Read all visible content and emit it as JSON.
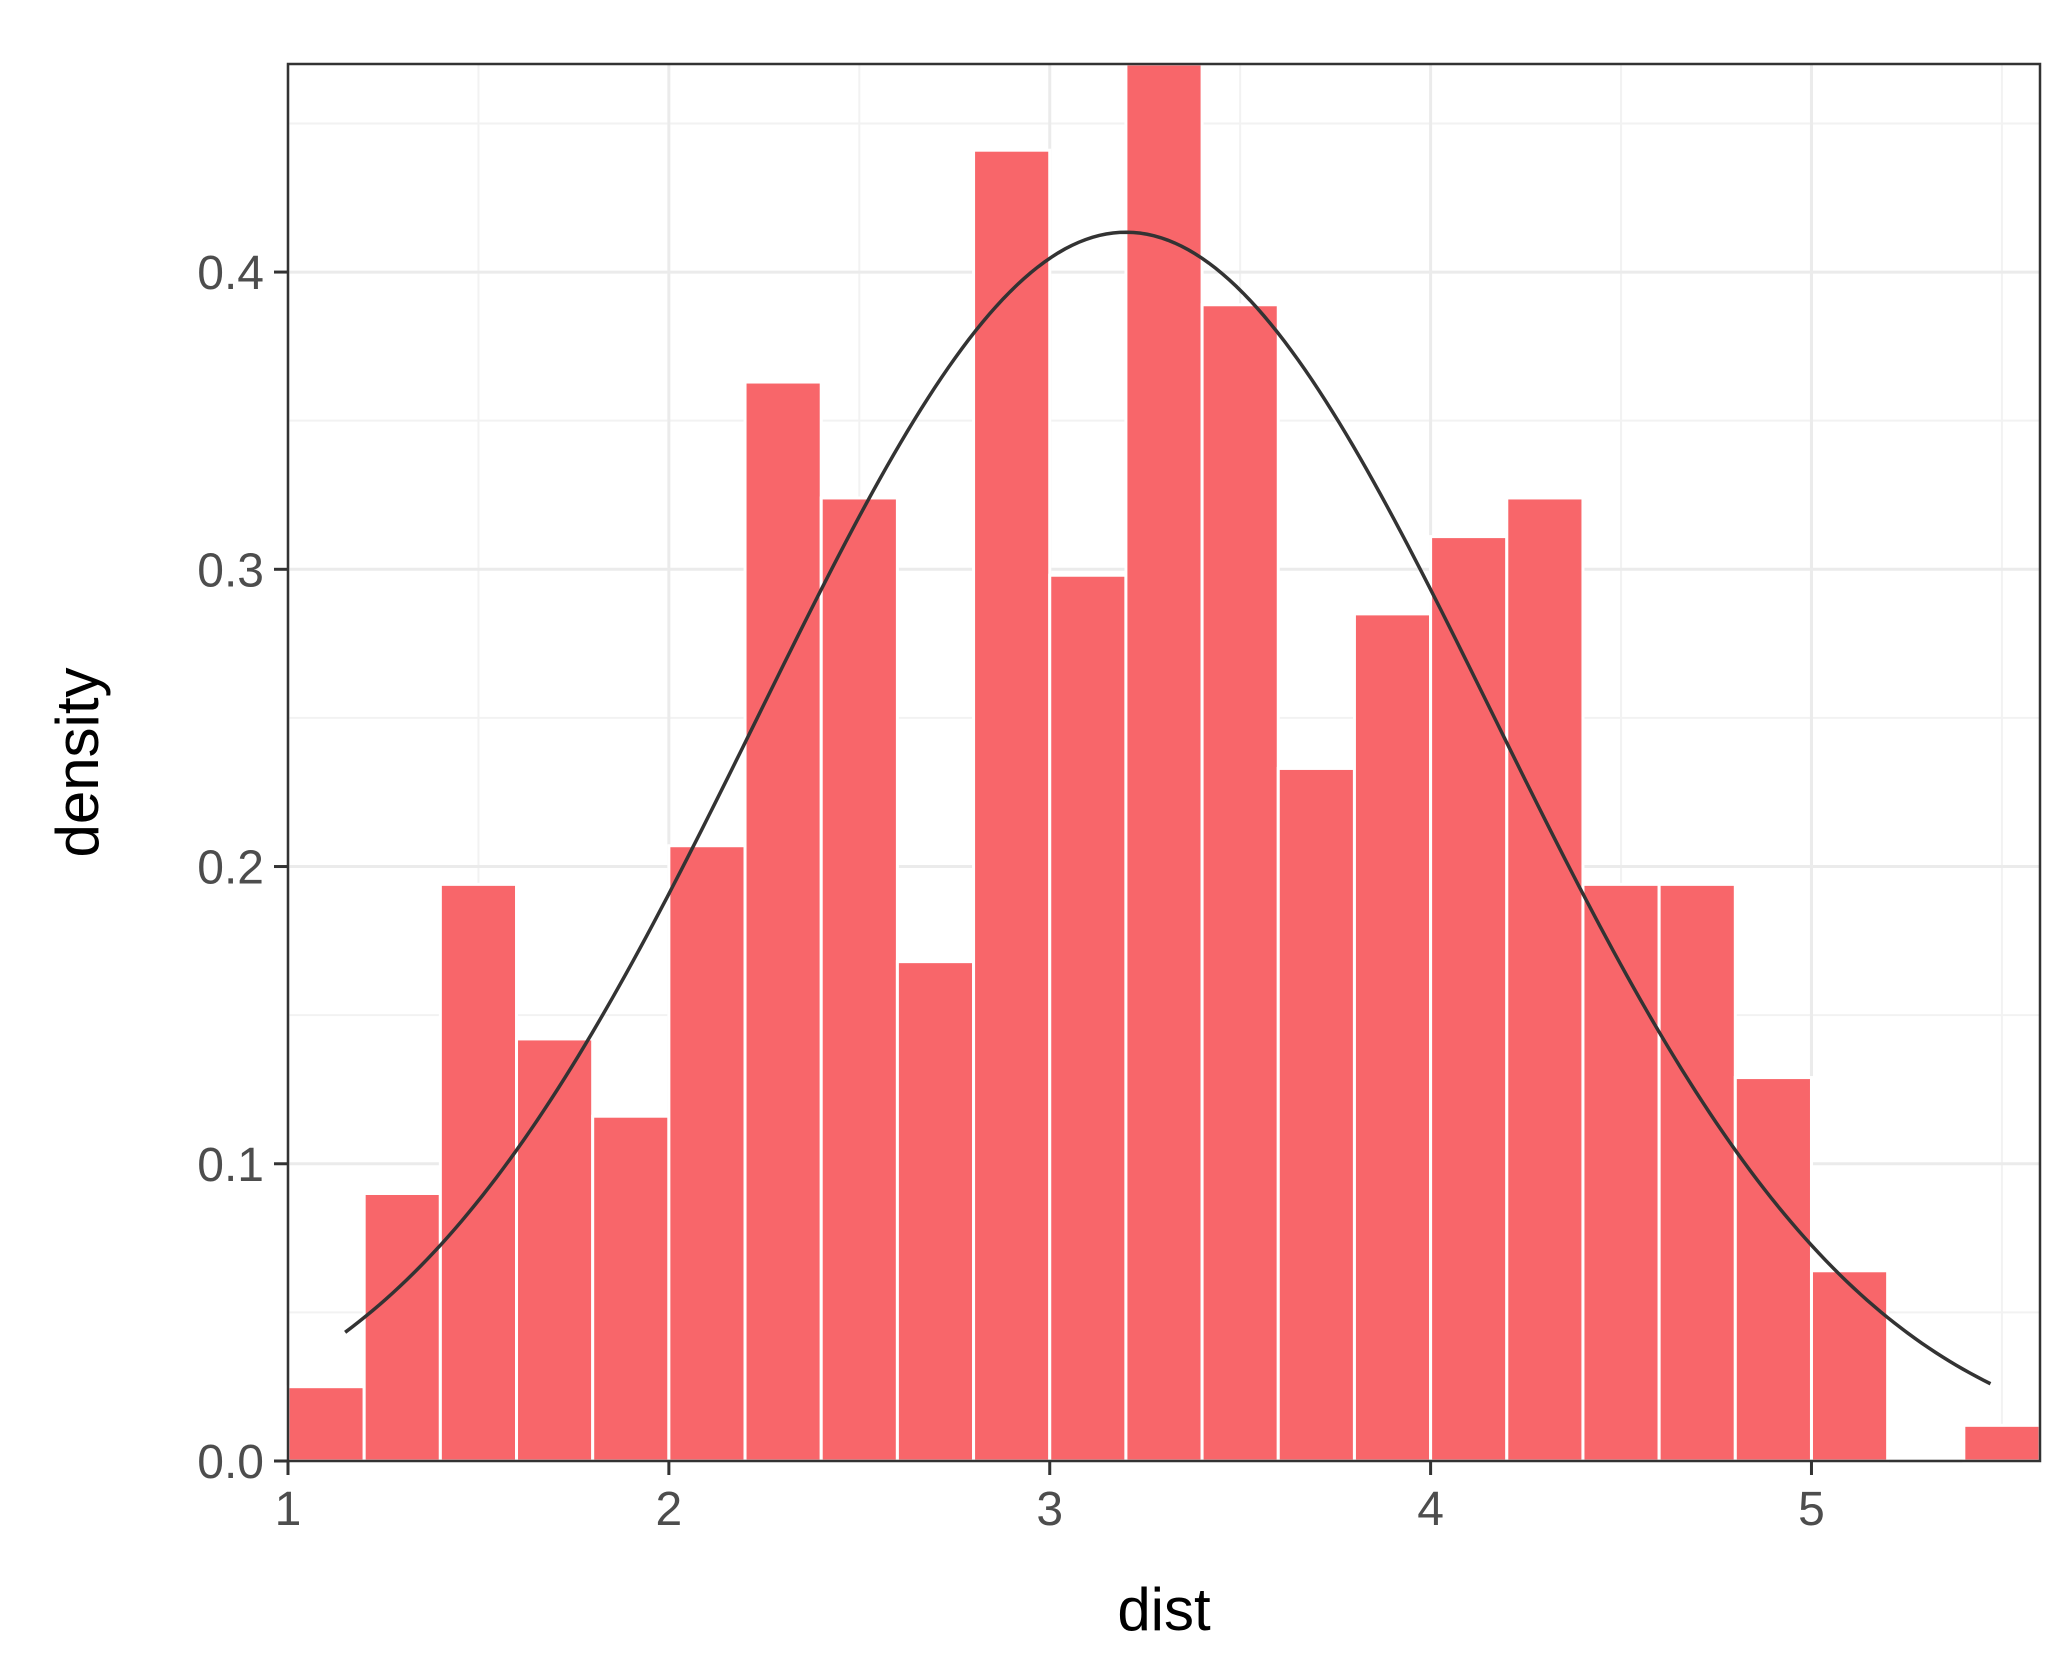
{
  "chart_data": {
    "type": "bar",
    "subtype": "histogram-with-density-curve",
    "xlabel": "dist",
    "ylabel": "density",
    "xlim": [
      1.0,
      5.6
    ],
    "ylim": [
      0.0,
      0.47
    ],
    "grid": true,
    "legend": "none",
    "x_ticks": [
      1,
      2,
      3,
      4,
      5
    ],
    "x_tick_labels": [
      "1",
      "2",
      "3",
      "4",
      "5"
    ],
    "y_ticks": [
      0.0,
      0.1,
      0.2,
      0.3,
      0.4
    ],
    "y_tick_labels": [
      "0.0",
      "0.1",
      "0.2",
      "0.3",
      "0.4"
    ],
    "bin_width": 0.2,
    "bin_starts": [
      1.0,
      1.2,
      1.4,
      1.6,
      1.8,
      2.0,
      2.2,
      2.4,
      2.6,
      2.8,
      3.0,
      3.2,
      3.4,
      3.6,
      3.8,
      4.0,
      4.2,
      4.4,
      4.6,
      4.8,
      5.0,
      5.2,
      5.4
    ],
    "values": [
      0.025,
      0.09,
      0.194,
      0.142,
      0.116,
      0.207,
      0.363,
      0.324,
      0.168,
      0.441,
      0.298,
      0.47,
      0.389,
      0.233,
      0.285,
      0.311,
      0.324,
      0.194,
      0.194,
      0.129,
      0.064,
      0.0,
      0.012
    ],
    "curve": {
      "type": "normal-density",
      "mean": 3.2,
      "sd": 0.965,
      "x_range": [
        1.15,
        5.47
      ]
    },
    "colors": {
      "bar_fill": "#f8666a",
      "bar_edge": "#ffffff",
      "curve": "#333333",
      "grid_major": "#ebebeb",
      "grid_minor": "#f2f2f2",
      "panel_border": "#333333",
      "tick_text": "#4d4d4d",
      "title_text": "#000000"
    }
  }
}
